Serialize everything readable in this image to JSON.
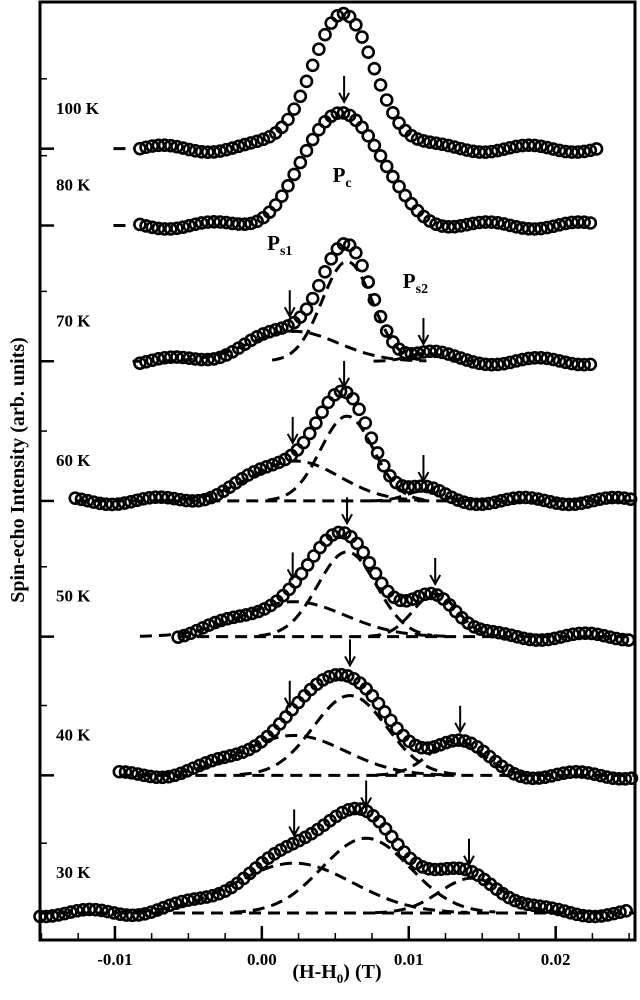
{
  "chart_data": {
    "type": "scatter",
    "title": "",
    "xlabel": "(H-H0) (T)",
    "xlabel_main": "(H-H",
    "xlabel_sub": "0",
    "xlabel_tail": ") (T)",
    "ylabel": "Spin-echo Intensity (arb. units)",
    "xlim": [
      -0.0151,
      0.0254
    ],
    "ylim": [
      0,
      94
    ],
    "xticks": [
      {
        "value": -0.01,
        "label": "-0.01"
      },
      {
        "value": 0.0,
        "label": "0.00"
      },
      {
        "value": 0.01,
        "label": "0.01"
      },
      {
        "value": 0.02,
        "label": "0.02"
      }
    ],
    "model": "baseline + sum of gaussian components (amp, center, sigma); open circles = data, dashed = fitted components",
    "series": [
      {
        "name": "100 K",
        "baseline": 79.3,
        "x_range": [
          -0.0083,
          0.0229
        ],
        "show_components": false,
        "components": [
          {
            "amp": 13.2,
            "center": 0.0055,
            "sigma": 0.0022
          }
        ],
        "arrows": []
      },
      {
        "name": "80 K",
        "baseline": 71.6,
        "x_range": [
          -0.0083,
          0.0225
        ],
        "show_components": false,
        "components": [
          {
            "amp": 11.6,
            "center": 0.0055,
            "sigma": 0.0025
          }
        ],
        "arrows": [
          0.0056
        ]
      },
      {
        "name": "70 K",
        "baseline": 58.0,
        "x_range": [
          -0.0083,
          0.0225
        ],
        "show_components": true,
        "components": [
          {
            "amp": 3.0,
            "center": 0.0022,
            "sigma": 0.003
          },
          {
            "amp": 10.0,
            "center": 0.0058,
            "sigma": 0.0017
          },
          {
            "amp": 0.8,
            "center": 0.0112,
            "sigma": 0.0012
          }
        ],
        "arrows": [
          0.0019,
          0.011
        ]
      },
      {
        "name": "60 K",
        "baseline": 44.0,
        "x_range": [
          -0.0127,
          0.0252
        ],
        "show_components": true,
        "components": [
          {
            "amp": 4.0,
            "center": 0.0023,
            "sigma": 0.003
          },
          {
            "amp": 8.5,
            "center": 0.0058,
            "sigma": 0.0018
          },
          {
            "amp": 1.0,
            "center": 0.011,
            "sigma": 0.0012
          }
        ],
        "arrows": [
          0.0021,
          0.0056,
          0.011
        ]
      },
      {
        "name": "50 K",
        "baseline": 30.4,
        "x_range": [
          -0.0057,
          0.0252
        ],
        "show_components": true,
        "components": [
          {
            "amp": 3.5,
            "center": 0.0022,
            "sigma": 0.0035
          },
          {
            "amp": 8.5,
            "center": 0.0058,
            "sigma": 0.002
          },
          {
            "amp": 4.3,
            "center": 0.0118,
            "sigma": 0.0015
          }
        ],
        "arrows": [
          0.0021,
          0.0058,
          0.0118
        ]
      },
      {
        "name": "40 K",
        "baseline": 16.5,
        "x_range": [
          -0.0097,
          0.0252
        ],
        "show_components": true,
        "components": [
          {
            "amp": 4.0,
            "center": 0.0022,
            "sigma": 0.0035
          },
          {
            "amp": 8.0,
            "center": 0.006,
            "sigma": 0.0025
          },
          {
            "amp": 3.5,
            "center": 0.0132,
            "sigma": 0.0018
          }
        ],
        "arrows": [
          0.0019,
          0.006,
          0.0135
        ]
      },
      {
        "name": "30 K",
        "baseline": 2.7,
        "x_range": [
          -0.0151,
          0.0252
        ],
        "show_components": true,
        "components": [
          {
            "amp": 5.0,
            "center": 0.0022,
            "sigma": 0.004
          },
          {
            "amp": 7.5,
            "center": 0.0071,
            "sigma": 0.003
          },
          {
            "amp": 3.5,
            "center": 0.0143,
            "sigma": 0.0022
          }
        ],
        "arrows": [
          0.0022,
          0.0071,
          0.0141
        ]
      }
    ],
    "annotations": [
      {
        "label": "P",
        "sub": "c",
        "x": 0.0056
      },
      {
        "label": "P",
        "sub": "s1",
        "x": 0.0019
      },
      {
        "label": "P",
        "sub": "s2",
        "x": 0.011
      }
    ],
    "grid": false,
    "legend": "none"
  }
}
